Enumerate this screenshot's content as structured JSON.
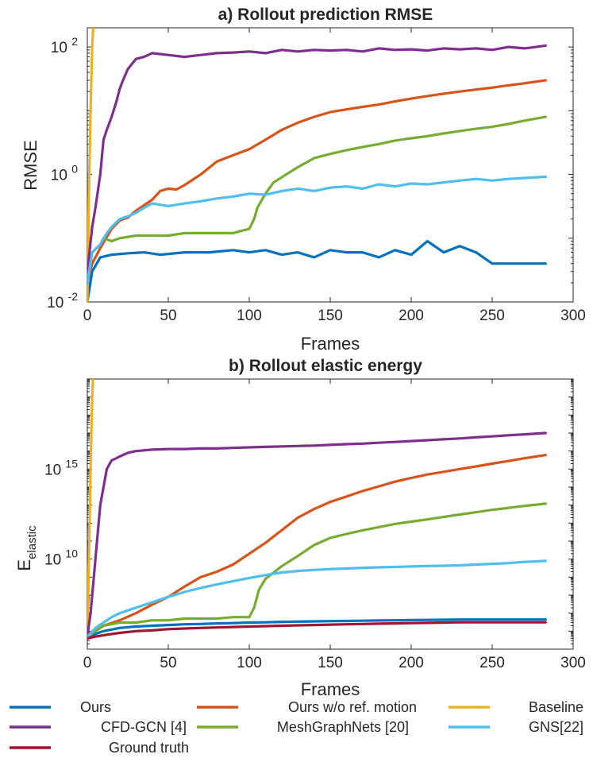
{
  "chart_data": [
    {
      "type": "line",
      "title": "a) Rollout prediction RMSE",
      "xlabel": "Frames",
      "ylabel": "RMSE",
      "yscale": "log",
      "xlim": [
        0,
        300
      ],
      "ylim": [
        0.01,
        200
      ],
      "xticks": [
        0,
        50,
        100,
        150,
        200,
        250,
        300
      ],
      "xtick_labels": [
        "0",
        "50",
        "100",
        "150",
        "200",
        "250",
        "300"
      ],
      "yticks": [
        {
          "base": "10",
          "exp": "-2",
          "value": 0.01
        },
        {
          "base": "10",
          "exp": "0",
          "value": 1
        },
        {
          "base": "10",
          "exp": "2",
          "value": 100
        }
      ],
      "grid": false,
      "series": [
        {
          "name": "Ours",
          "color": "#0072BD",
          "x": [
            0,
            3,
            8,
            15,
            25,
            35,
            45,
            60,
            75,
            90,
            100,
            110,
            120,
            130,
            140,
            150,
            160,
            170,
            180,
            190,
            200,
            210,
            220,
            230,
            240,
            250,
            260,
            270,
            283
          ],
          "y": [
            0.01,
            0.03,
            0.05,
            0.055,
            0.058,
            0.06,
            0.055,
            0.06,
            0.06,
            0.065,
            0.06,
            0.065,
            0.055,
            0.06,
            0.05,
            0.065,
            0.06,
            0.06,
            0.05,
            0.065,
            0.055,
            0.09,
            0.06,
            0.075,
            0.06,
            0.04,
            0.04,
            0.04,
            0.04
          ]
        },
        {
          "name": "Ours w/o ref. motion",
          "color": "#D95319",
          "x": [
            0,
            3,
            8,
            15,
            20,
            25,
            30,
            40,
            45,
            50,
            55,
            60,
            70,
            80,
            90,
            100,
            110,
            120,
            130,
            140,
            150,
            160,
            170,
            180,
            190,
            200,
            210,
            220,
            230,
            240,
            250,
            260,
            270,
            283
          ],
          "y": [
            0.02,
            0.04,
            0.07,
            0.14,
            0.19,
            0.21,
            0.27,
            0.4,
            0.55,
            0.6,
            0.58,
            0.68,
            1.0,
            1.6,
            2.0,
            2.5,
            3.5,
            5.0,
            6.5,
            8.0,
            9.5,
            10.5,
            11.5,
            12.5,
            14,
            15.5,
            17,
            18.5,
            20,
            21.5,
            23,
            25,
            27,
            30
          ]
        },
        {
          "name": "Baseline",
          "color": "#EDB120",
          "x": [
            0,
            1,
            2,
            3,
            4
          ],
          "y": [
            0.01,
            0.5,
            10,
            100,
            300
          ]
        },
        {
          "name": "CFD-GCN [4]",
          "color": "#7E2F8E",
          "x": [
            0,
            1,
            3,
            5,
            8,
            10,
            12,
            15,
            18,
            20,
            22,
            25,
            30,
            35,
            40,
            50,
            60,
            70,
            80,
            90,
            100,
            110,
            120,
            130,
            140,
            150,
            160,
            170,
            180,
            190,
            200,
            210,
            220,
            230,
            240,
            250,
            260,
            270,
            283
          ],
          "y": [
            0.02,
            0.05,
            0.15,
            0.3,
            1.0,
            3.5,
            5,
            8,
            14,
            22,
            30,
            45,
            65,
            70,
            80,
            75,
            70,
            75,
            80,
            82,
            85,
            80,
            90,
            85,
            90,
            88,
            90,
            85,
            95,
            90,
            92,
            88,
            95,
            92,
            95,
            90,
            100,
            95,
            105
          ]
        },
        {
          "name": "MeshGraphNets [20]",
          "color": "#77AC30",
          "x": [
            0,
            3,
            8,
            10,
            15,
            20,
            30,
            40,
            50,
            60,
            70,
            80,
            90,
            95,
            100,
            103,
            105,
            110,
            115,
            120,
            130,
            140,
            150,
            160,
            170,
            180,
            190,
            200,
            210,
            220,
            230,
            240,
            250,
            260,
            270,
            283
          ],
          "y": [
            0.02,
            0.06,
            0.08,
            0.1,
            0.09,
            0.1,
            0.11,
            0.11,
            0.11,
            0.12,
            0.12,
            0.12,
            0.12,
            0.13,
            0.14,
            0.2,
            0.3,
            0.5,
            0.75,
            0.9,
            1.3,
            1.8,
            2.1,
            2.4,
            2.7,
            3.0,
            3.4,
            3.7,
            4.0,
            4.4,
            4.8,
            5.2,
            5.6,
            6.2,
            7.0,
            8.0
          ]
        },
        {
          "name": "GNS[22]",
          "color": "#4DBEEE",
          "x": [
            0,
            3,
            8,
            12,
            15,
            20,
            25,
            30,
            35,
            40,
            50,
            60,
            70,
            80,
            90,
            100,
            110,
            120,
            130,
            140,
            150,
            160,
            170,
            180,
            190,
            200,
            210,
            220,
            230,
            240,
            250,
            260,
            270,
            283
          ],
          "y": [
            0.02,
            0.06,
            0.08,
            0.12,
            0.15,
            0.2,
            0.22,
            0.25,
            0.3,
            0.35,
            0.32,
            0.35,
            0.38,
            0.42,
            0.45,
            0.5,
            0.48,
            0.55,
            0.6,
            0.55,
            0.62,
            0.65,
            0.6,
            0.7,
            0.65,
            0.72,
            0.7,
            0.75,
            0.8,
            0.85,
            0.8,
            0.85,
            0.88,
            0.92
          ]
        }
      ]
    },
    {
      "type": "line",
      "title": "b) Rollout elastic energy",
      "xlabel": "Frames",
      "ylabel": "E",
      "ylabel_sub": "elastic",
      "yscale": "log",
      "xlim": [
        0,
        300
      ],
      "ylim": [
        100000,
        1e+20
      ],
      "xticks": [
        0,
        50,
        100,
        150,
        200,
        250,
        300
      ],
      "xtick_labels": [
        "0",
        "50",
        "100",
        "150",
        "200",
        "250",
        "300"
      ],
      "yticks": [
        {
          "base": "10",
          "exp": "10",
          "value": 10000000000.0
        },
        {
          "base": "10",
          "exp": "15",
          "value": 1000000000000000.0
        }
      ],
      "grid": false,
      "series": [
        {
          "name": "Ours",
          "color": "#0072BD",
          "x": [
            0,
            5,
            10,
            20,
            30,
            40,
            50,
            60,
            70,
            80,
            90,
            100,
            110,
            120,
            130,
            140,
            150,
            160,
            170,
            180,
            190,
            200,
            210,
            220,
            230,
            240,
            250,
            260,
            270,
            283
          ],
          "y": [
            500000.0,
            700000.0,
            1000000.0,
            1500000.0,
            1800000.0,
            2000000.0,
            2200000.0,
            2400000.0,
            2500000.0,
            2700000.0,
            2800000.0,
            3000000.0,
            3100000.0,
            3300000.0,
            3400000.0,
            3500000.0,
            3600000.0,
            3700000.0,
            3800000.0,
            3900000.0,
            4000000.0,
            4100000.0,
            4200000.0,
            4300000.0,
            4400000.0,
            4400000.0,
            4400000.0,
            4400000.0,
            4400000.0,
            4400000.0
          ]
        },
        {
          "name": "Ours w/o ref. motion",
          "color": "#D95319",
          "x": [
            0,
            5,
            10,
            20,
            30,
            40,
            50,
            60,
            70,
            80,
            90,
            100,
            110,
            120,
            130,
            140,
            150,
            160,
            170,
            180,
            190,
            200,
            210,
            220,
            230,
            240,
            250,
            260,
            270,
            283
          ],
          "y": [
            500000.0,
            1000000.0,
            2000000.0,
            4000000.0,
            10000000.0,
            30000000.0,
            80000000.0,
            300000000.0,
            1000000000.0,
            2000000000.0,
            5000000000.0,
            20000000000.0,
            80000000000.0,
            400000000000.0,
            2000000000000.0,
            6000000000000.0,
            15000000000000.0,
            30000000000000.0,
            60000000000000.0,
            110000000000000.0,
            200000000000000.0,
            320000000000000.0,
            500000000000000.0,
            700000000000000.0,
            1000000000000000.0,
            1400000000000000.0,
            2000000000000000.0,
            2800000000000000.0,
            4000000000000000.0,
            6000000000000000.0
          ]
        },
        {
          "name": "Baseline",
          "color": "#EDB120",
          "x": [
            0,
            1,
            2,
            3,
            4
          ],
          "y": [
            1000000.0,
            10000000000.0,
            1000000000000000.0,
            1e+19,
            1e+21
          ]
        },
        {
          "name": "CFD-GCN [4]",
          "color": "#7E2F8E",
          "x": [
            0,
            2,
            4,
            6,
            8,
            10,
            12,
            15,
            20,
            25,
            30,
            40,
            50,
            60,
            70,
            80,
            90,
            100,
            110,
            120,
            130,
            140,
            150,
            160,
            170,
            180,
            190,
            200,
            210,
            220,
            230,
            240,
            250,
            260,
            270,
            283
          ],
          "y": [
            500000.0,
            10000000.0,
            1000000000.0,
            100000000000.0,
            10000000000000.0,
            100000000000000.0,
            1000000000000000.0,
            3000000000000000.0,
            5000000000000000.0,
            8000000000000000.0,
            1e+16,
            1.2e+16,
            1.3e+16,
            1.3e+16,
            1.4e+16,
            1.4e+16,
            1.5e+16,
            1.6e+16,
            1.7e+16,
            1.8e+16,
            1.9e+16,
            2e+16,
            2.2e+16,
            2.4e+16,
            2.6e+16,
            2.9e+16,
            3.2e+16,
            3.6e+16,
            4e+16,
            4.5e+16,
            5e+16,
            5.8e+16,
            6.5e+16,
            7.5e+16,
            8.5e+16,
            1e+17
          ]
        },
        {
          "name": "MeshGraphNets [20]",
          "color": "#77AC30",
          "x": [
            0,
            5,
            10,
            20,
            30,
            40,
            50,
            60,
            70,
            80,
            90,
            100,
            103,
            106,
            110,
            120,
            130,
            140,
            150,
            160,
            170,
            180,
            190,
            200,
            210,
            220,
            230,
            240,
            250,
            260,
            270,
            283
          ],
          "y": [
            500000.0,
            1000000.0,
            2000000.0,
            3000000.0,
            3000000.0,
            4000000.0,
            4000000.0,
            5000000.0,
            5000000.0,
            5000000.0,
            6000000.0,
            6000000.0,
            20000000.0,
            200000000.0,
            800000000.0,
            4000000000.0,
            15000000000.0,
            60000000000.0,
            150000000000.0,
            250000000000.0,
            400000000000.0,
            600000000000.0,
            900000000000.0,
            1200000000000.0,
            1600000000000.0,
            2200000000000.0,
            3000000000000.0,
            4000000000000.0,
            5500000000000.0,
            7000000000000.0,
            9000000000000.0,
            12000000000000.0
          ]
        },
        {
          "name": "GNS[22]",
          "color": "#4DBEEE",
          "x": [
            0,
            5,
            10,
            15,
            20,
            30,
            40,
            50,
            60,
            70,
            80,
            90,
            100,
            110,
            120,
            130,
            140,
            150,
            160,
            170,
            180,
            190,
            200,
            210,
            220,
            230,
            240,
            250,
            260,
            270,
            283
          ],
          "y": [
            500000.0,
            1500000.0,
            3000000.0,
            6000000.0,
            10000000.0,
            20000000.0,
            40000000.0,
            80000000.0,
            150000000.0,
            250000000.0,
            400000000.0,
            600000000.0,
            900000000.0,
            1300000000.0,
            1800000000.0,
            2200000000.0,
            2500000000.0,
            2800000000.0,
            3000000000.0,
            3300000000.0,
            3500000000.0,
            3700000000.0,
            3900000000.0,
            4100000000.0,
            4300000000.0,
            4500000000.0,
            5000000000.0,
            5500000000.0,
            6000000000.0,
            7000000000.0,
            8000000000.0
          ]
        },
        {
          "name": "Ground truth",
          "color": "#A2142F",
          "x": [
            0,
            5,
            10,
            20,
            30,
            40,
            50,
            60,
            70,
            80,
            90,
            100,
            110,
            120,
            130,
            140,
            150,
            160,
            170,
            180,
            190,
            200,
            210,
            220,
            230,
            240,
            250,
            260,
            270,
            283
          ],
          "y": [
            400000.0,
            500000.0,
            600000.0,
            800000.0,
            1000000.0,
            1100000.0,
            1300000.0,
            1400000.0,
            1500000.0,
            1600000.0,
            1700000.0,
            1800000.0,
            1900000.0,
            2000000.0,
            2100000.0,
            2200000.0,
            2300000.0,
            2400000.0,
            2500000.0,
            2600000.0,
            2700000.0,
            2800000.0,
            2900000.0,
            3000000.0,
            3100000.0,
            3100000.0,
            3100000.0,
            3100000.0,
            3100000.0,
            3100000.0
          ]
        }
      ]
    }
  ],
  "legend": [
    {
      "label": "Ours",
      "color": "#0072BD"
    },
    {
      "label": "Ours w/o ref. motion",
      "color": "#D95319"
    },
    {
      "label": "Baseline",
      "color": "#EDB120"
    },
    {
      "label": "CFD-GCN [4]",
      "color": "#7E2F8E"
    },
    {
      "label": "MeshGraphNets [20]",
      "color": "#77AC30"
    },
    {
      "label": "GNS[22]",
      "color": "#4DBEEE"
    },
    {
      "label": "Ground truth",
      "color": "#A2142F"
    }
  ]
}
